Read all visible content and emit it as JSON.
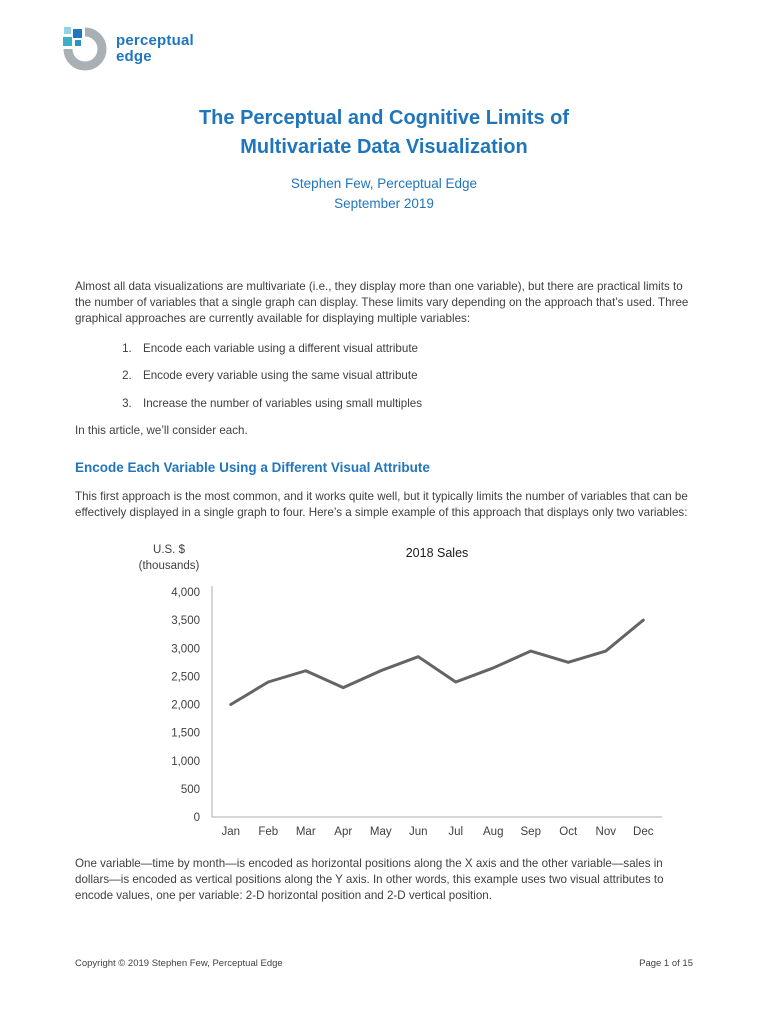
{
  "logo": {
    "line1": "perceptual",
    "line2": "edge"
  },
  "header": {
    "title_line1": "The Perceptual and Cognitive Limits of",
    "title_line2": "Multivariate Data Visualization",
    "author": "Stephen Few, Perceptual Edge",
    "date": "September 2019"
  },
  "intro": {
    "paragraph": "Almost all data visualizations are multivariate (i.e., they display more than one variable), but there are practical limits to the number of variables that a single graph can display. These limits vary depending on the approach that’s used. Three graphical approaches are currently available for displaying multiple variables:",
    "list": [
      "Encode each variable using a different visual attribute",
      "Encode every variable using the same visual attribute",
      "Increase the number of variables using small multiples"
    ],
    "closing": "In this article, we’ll consider each."
  },
  "section1": {
    "heading": "Encode Each Variable Using a Different Visual Attribute",
    "paragraph": "This first approach is the most common, and it works quite well, but it typically limits the number of variables that can be effectively displayed in a single graph to four. Here’s a simple example of this approach that displays only two variables:",
    "after_chart": "One variable—time by month—is encoded as horizontal positions along the X axis and the other variable—sales in dollars—is encoded as vertical positions along the Y axis. In other words, this example uses two visual attributes to encode values, one per variable: 2-D horizontal position and 2-D vertical position."
  },
  "chart_data": {
    "type": "line",
    "title": "2018 Sales",
    "y_axis_label_line1": "U.S. $",
    "y_axis_label_line2": "(thousands)",
    "categories": [
      "Jan",
      "Feb",
      "Mar",
      "Apr",
      "May",
      "Jun",
      "Jul",
      "Aug",
      "Sep",
      "Oct",
      "Nov",
      "Dec"
    ],
    "values": [
      2000,
      2400,
      2600,
      2300,
      2600,
      2850,
      2400,
      2650,
      2950,
      2750,
      2950,
      3500
    ],
    "ylim": [
      0,
      4000
    ],
    "ytick_interval": 500,
    "ytick_labels": [
      "0",
      "500",
      "1,000",
      "1,500",
      "2,000",
      "2,500",
      "3,000",
      "3,500",
      "4,000"
    ],
    "line_color": "#646464",
    "grid": false,
    "legend": "none"
  },
  "footer": {
    "copyright": "Copyright © 2019 Stephen Few, Perceptual Edge",
    "page": "Page 1 of 15"
  }
}
